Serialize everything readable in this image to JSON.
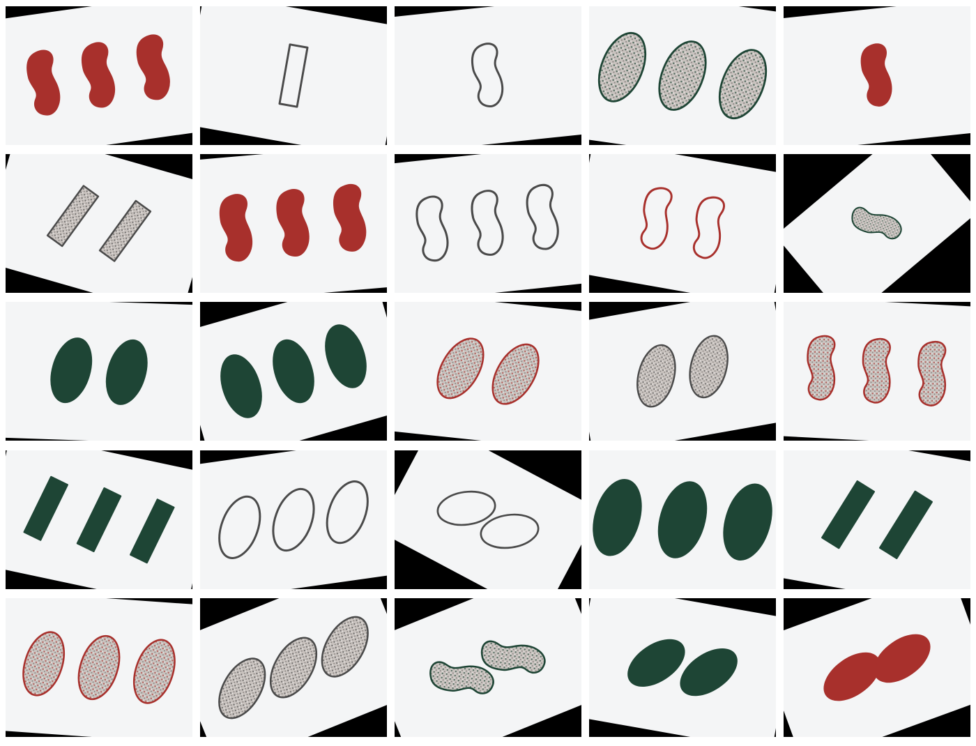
{
  "colors": {
    "red": "#a8302c",
    "green": "#1e4535",
    "purple": "#4a4a4a",
    "card": "#f4f5f6",
    "background": "#000000"
  },
  "cards": [
    {
      "number": 3,
      "shape": "squiggle",
      "color": "red",
      "shading": "solid"
    },
    {
      "number": 1,
      "shape": "diamond",
      "color": "purple",
      "shading": "open"
    },
    {
      "number": 1,
      "shape": "squiggle",
      "color": "purple",
      "shading": "open"
    },
    {
      "number": 3,
      "shape": "oval",
      "color": "green",
      "shading": "striped"
    },
    {
      "number": 1,
      "shape": "squiggle",
      "color": "red",
      "shading": "solid"
    },
    {
      "number": 2,
      "shape": "diamond",
      "color": "purple",
      "shading": "striped"
    },
    {
      "number": 3,
      "shape": "squiggle",
      "color": "red",
      "shading": "solid"
    },
    {
      "number": 3,
      "shape": "squiggle",
      "color": "purple",
      "shading": "open"
    },
    {
      "number": 2,
      "shape": "squiggle",
      "color": "red",
      "shading": "open"
    },
    {
      "number": 1,
      "shape": "squiggle",
      "color": "green",
      "shading": "striped"
    },
    {
      "number": 2,
      "shape": "oval",
      "color": "green",
      "shading": "solid"
    },
    {
      "number": 3,
      "shape": "oval",
      "color": "green",
      "shading": "solid"
    },
    {
      "number": 2,
      "shape": "oval",
      "color": "red",
      "shading": "striped"
    },
    {
      "number": 2,
      "shape": "oval",
      "color": "purple",
      "shading": "striped"
    },
    {
      "number": 3,
      "shape": "squiggle",
      "color": "red",
      "shading": "striped"
    },
    {
      "number": 3,
      "shape": "diamond",
      "color": "green",
      "shading": "solid"
    },
    {
      "number": 3,
      "shape": "oval",
      "color": "purple",
      "shading": "open"
    },
    {
      "number": 2,
      "shape": "oval",
      "color": "purple",
      "shading": "open"
    },
    {
      "number": 3,
      "shape": "oval",
      "color": "green",
      "shading": "solid"
    },
    {
      "number": 2,
      "shape": "diamond",
      "color": "green",
      "shading": "solid"
    },
    {
      "number": 3,
      "shape": "oval",
      "color": "red",
      "shading": "striped"
    },
    {
      "number": 3,
      "shape": "oval",
      "color": "purple",
      "shading": "striped"
    },
    {
      "number": 2,
      "shape": "squiggle",
      "color": "green",
      "shading": "striped"
    },
    {
      "number": 2,
      "shape": "oval",
      "color": "green",
      "shading": "solid"
    },
    {
      "number": 2,
      "shape": "oval",
      "color": "red",
      "shading": "solid"
    }
  ]
}
